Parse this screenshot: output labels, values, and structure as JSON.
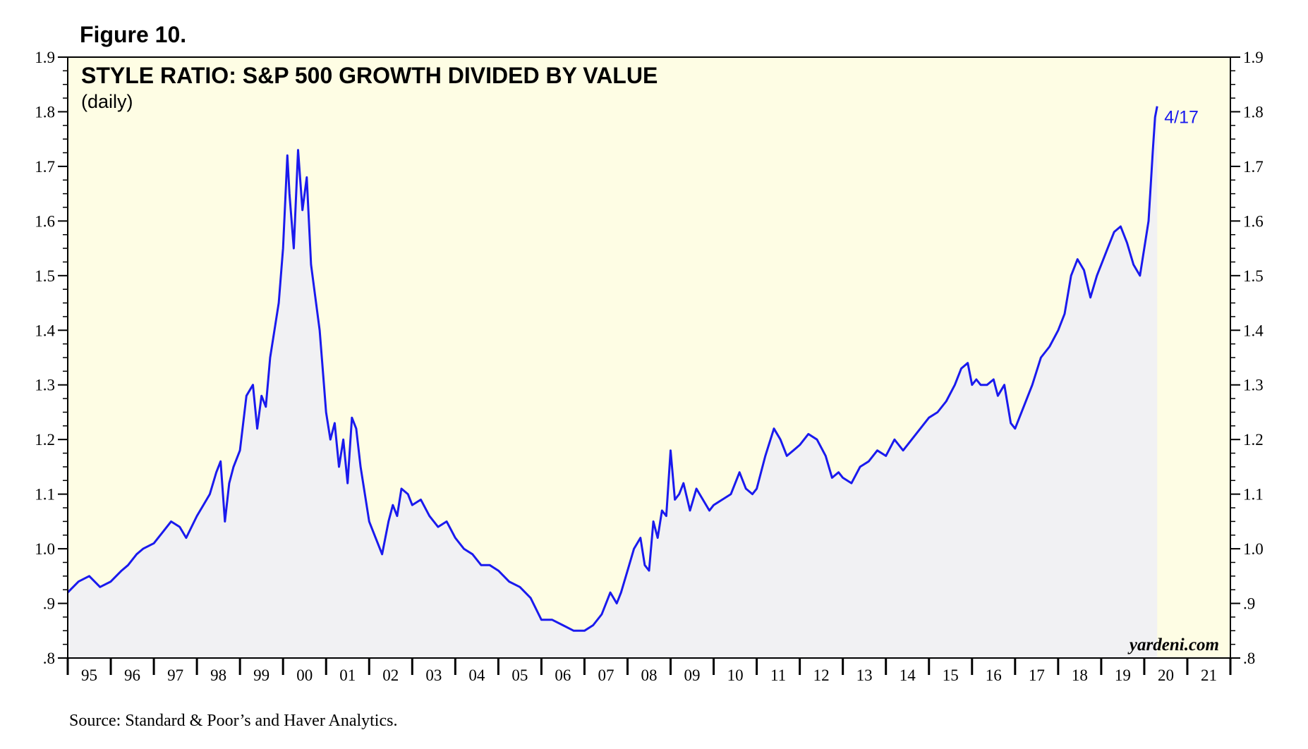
{
  "figure_label": "Figure 10.",
  "source": "Source: Standard & Poor’s and Haver Analytics.",
  "brand": "yardeni.com",
  "colors": {
    "plot_background": "#fefde4",
    "area_fill": "#f1f1f3",
    "line": "#1a1aee",
    "annotation": "#1a1aee",
    "axis": "#000000"
  },
  "chart_data": {
    "type": "area",
    "title": "STYLE RATIO: S&P 500 GROWTH DIVIDED BY VALUE",
    "subtitle": "(daily)",
    "frequency": "daily",
    "xlabel": "",
    "ylabel": "",
    "xlim": [
      1995,
      2022
    ],
    "ylim": [
      0.8,
      1.9
    ],
    "y_ticks": [
      {
        "value": 1.9,
        "label": "1.9"
      },
      {
        "value": 1.8,
        "label": "1.8"
      },
      {
        "value": 1.7,
        "label": "1.7"
      },
      {
        "value": 1.6,
        "label": "1.6"
      },
      {
        "value": 1.5,
        "label": "1.5"
      },
      {
        "value": 1.4,
        "label": "1.4"
      },
      {
        "value": 1.3,
        "label": "1.3"
      },
      {
        "value": 1.2,
        "label": "1.2"
      },
      {
        "value": 1.1,
        "label": "1.1"
      },
      {
        "value": 1.0,
        "label": "1.0"
      },
      {
        "value": 0.9,
        "label": ".9"
      },
      {
        "value": 0.8,
        "label": ".8"
      }
    ],
    "x_ticks": [
      "95",
      "96",
      "97",
      "98",
      "99",
      "00",
      "01",
      "02",
      "03",
      "04",
      "05",
      "06",
      "07",
      "08",
      "09",
      "10",
      "11",
      "12",
      "13",
      "14",
      "15",
      "16",
      "17",
      "18",
      "19",
      "20",
      "21"
    ],
    "x_tick_start_year": 1995,
    "grid": false,
    "annotation": {
      "label": "4/17",
      "x": 2020.3,
      "y": 1.81
    },
    "series": [
      {
        "name": "S&P 500 Growth / Value",
        "x": [
          1995.0,
          1995.25,
          1995.5,
          1995.75,
          1996.0,
          1996.25,
          1996.4,
          1996.6,
          1996.75,
          1997.0,
          1997.2,
          1997.4,
          1997.6,
          1997.75,
          1998.0,
          1998.15,
          1998.3,
          1998.45,
          1998.55,
          1998.65,
          1998.75,
          1998.85,
          1999.0,
          1999.15,
          1999.3,
          1999.4,
          1999.5,
          1999.6,
          1999.7,
          1999.8,
          1999.9,
          2000.0,
          2000.1,
          2000.15,
          2000.25,
          2000.35,
          2000.45,
          2000.55,
          2000.65,
          2000.75,
          2000.85,
          2000.95,
          2001.0,
          2001.1,
          2001.2,
          2001.3,
          2001.4,
          2001.5,
          2001.6,
          2001.7,
          2001.8,
          2001.9,
          2002.0,
          2002.15,
          2002.3,
          2002.45,
          2002.55,
          2002.65,
          2002.75,
          2002.9,
          2003.0,
          2003.2,
          2003.4,
          2003.6,
          2003.8,
          2004.0,
          2004.2,
          2004.4,
          2004.6,
          2004.8,
          2005.0,
          2005.25,
          2005.5,
          2005.75,
          2006.0,
          2006.25,
          2006.5,
          2006.75,
          2007.0,
          2007.2,
          2007.4,
          2007.6,
          2007.75,
          2007.85,
          2008.0,
          2008.15,
          2008.3,
          2008.4,
          2008.5,
          2008.6,
          2008.7,
          2008.8,
          2008.9,
          2009.0,
          2009.1,
          2009.2,
          2009.3,
          2009.45,
          2009.6,
          2009.75,
          2009.9,
          2010.0,
          2010.2,
          2010.4,
          2010.6,
          2010.75,
          2010.9,
          2011.0,
          2011.2,
          2011.4,
          2011.55,
          2011.7,
          2011.85,
          2012.0,
          2012.2,
          2012.4,
          2012.6,
          2012.75,
          2012.9,
          2013.0,
          2013.2,
          2013.4,
          2013.6,
          2013.8,
          2014.0,
          2014.2,
          2014.4,
          2014.6,
          2014.8,
          2015.0,
          2015.2,
          2015.4,
          2015.6,
          2015.75,
          2015.9,
          2016.0,
          2016.1,
          2016.2,
          2016.35,
          2016.5,
          2016.6,
          2016.75,
          2016.9,
          2017.0,
          2017.2,
          2017.4,
          2017.6,
          2017.8,
          2018.0,
          2018.15,
          2018.3,
          2018.45,
          2018.6,
          2018.75,
          2018.9,
          2019.0,
          2019.15,
          2019.3,
          2019.45,
          2019.6,
          2019.75,
          2019.9,
          2020.0,
          2020.1,
          2020.2,
          2020.25,
          2020.3
        ],
        "values": [
          0.92,
          0.94,
          0.95,
          0.93,
          0.94,
          0.96,
          0.97,
          0.99,
          1.0,
          1.01,
          1.03,
          1.05,
          1.04,
          1.02,
          1.06,
          1.08,
          1.1,
          1.14,
          1.16,
          1.05,
          1.12,
          1.15,
          1.18,
          1.28,
          1.3,
          1.22,
          1.28,
          1.26,
          1.35,
          1.4,
          1.45,
          1.55,
          1.72,
          1.65,
          1.55,
          1.73,
          1.62,
          1.68,
          1.52,
          1.46,
          1.4,
          1.3,
          1.25,
          1.2,
          1.23,
          1.15,
          1.2,
          1.12,
          1.24,
          1.22,
          1.15,
          1.1,
          1.05,
          1.02,
          0.99,
          1.05,
          1.08,
          1.06,
          1.11,
          1.1,
          1.08,
          1.09,
          1.06,
          1.04,
          1.05,
          1.02,
          1.0,
          0.99,
          0.97,
          0.97,
          0.96,
          0.94,
          0.93,
          0.91,
          0.87,
          0.87,
          0.86,
          0.85,
          0.85,
          0.86,
          0.88,
          0.92,
          0.9,
          0.92,
          0.96,
          1.0,
          1.02,
          0.97,
          0.96,
          1.05,
          1.02,
          1.07,
          1.06,
          1.18,
          1.09,
          1.1,
          1.12,
          1.07,
          1.11,
          1.09,
          1.07,
          1.08,
          1.09,
          1.1,
          1.14,
          1.11,
          1.1,
          1.11,
          1.17,
          1.22,
          1.2,
          1.17,
          1.18,
          1.19,
          1.21,
          1.2,
          1.17,
          1.13,
          1.14,
          1.13,
          1.12,
          1.15,
          1.16,
          1.18,
          1.17,
          1.2,
          1.18,
          1.2,
          1.22,
          1.24,
          1.25,
          1.27,
          1.3,
          1.33,
          1.34,
          1.3,
          1.31,
          1.3,
          1.3,
          1.31,
          1.28,
          1.3,
          1.23,
          1.22,
          1.26,
          1.3,
          1.35,
          1.37,
          1.4,
          1.43,
          1.5,
          1.53,
          1.51,
          1.46,
          1.5,
          1.52,
          1.55,
          1.58,
          1.59,
          1.56,
          1.52,
          1.5,
          1.55,
          1.6,
          1.73,
          1.79,
          1.81
        ]
      }
    ]
  }
}
